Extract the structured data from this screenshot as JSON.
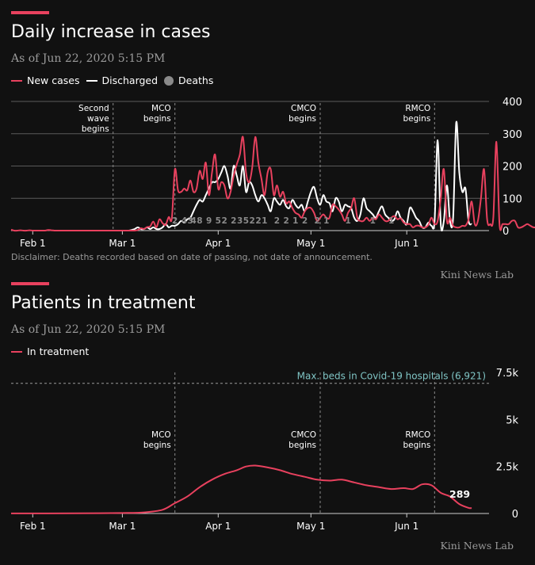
{
  "colors": {
    "new_cases": "#e8415e",
    "discharged": "#ffffff",
    "deaths": "#8a8a8a",
    "max_beds": "#7fc4c4"
  },
  "chart1": {
    "title": "Daily increase in cases",
    "subtitle": "As of Jun 22, 2020 5:15 PM",
    "legend": [
      "New cases",
      "Discharged",
      "Deaths"
    ],
    "disclaimer": "Disclaimer: Deaths recorded based on date of passing, not date of announcement.",
    "credit": "Kini News Lab"
  },
  "chart2": {
    "title": "Patients in treatment",
    "subtitle": "As of Jun 22, 2020 5:15 PM",
    "legend": [
      "In treatment"
    ],
    "credit": "Kini News Lab"
  },
  "chart_data": [
    {
      "type": "line",
      "title": "Daily increase in cases",
      "subtitle": "As of Jun 22, 2020 5:15 PM",
      "x_start": "2020-01-25",
      "x_ticks": [
        "Feb 1",
        "Mar 1",
        "Apr 1",
        "May 1",
        "Jun 1"
      ],
      "y_ticks": [
        "0",
        "100",
        "200",
        "300",
        "400"
      ],
      "ylim": [
        0,
        400
      ],
      "grid": true,
      "legend_position": "top-left",
      "annotations": [
        {
          "lines": [
            "Second",
            "wave",
            "begins"
          ],
          "x": "2020-02-27"
        },
        {
          "lines": [
            "MCO",
            "begins"
          ],
          "x": "2020-03-18"
        },
        {
          "lines": [
            "CMCO",
            "begins"
          ],
          "x": "2020-05-04"
        },
        {
          "lines": [
            "RMCO",
            "begins"
          ],
          "x": "2020-06-10"
        }
      ],
      "series": [
        {
          "name": "New cases",
          "start": "2020-01-25",
          "values": [
            3,
            0,
            0,
            1,
            0,
            0,
            1,
            0,
            0,
            0,
            0,
            0,
            2,
            1,
            0,
            0,
            0,
            0,
            0,
            0,
            0,
            0,
            0,
            0,
            0,
            0,
            0,
            0,
            0,
            0,
            0,
            0,
            0,
            0,
            0,
            0,
            0,
            0,
            0,
            0,
            0,
            2,
            7,
            5,
            11,
            13,
            28,
            10,
            35,
            23,
            18,
            42,
            38,
            190,
            125,
            120,
            130,
            125,
            155,
            120,
            130,
            185,
            160,
            210,
            110,
            180,
            235,
            130,
            150,
            140,
            100,
            120,
            170,
            205,
            235,
            290,
            180,
            150,
            195,
            290,
            210,
            160,
            110,
            180,
            190,
            110,
            140,
            105,
            120,
            85,
            90,
            70,
            55,
            50,
            40,
            60,
            70,
            70,
            55,
            30,
            40,
            50,
            40,
            40,
            80,
            75,
            65,
            50,
            30,
            55,
            70,
            100,
            40,
            30,
            30,
            40,
            30,
            40,
            35,
            50,
            40,
            30,
            30,
            40,
            45,
            35,
            38,
            25,
            20,
            20,
            10,
            15,
            15,
            10,
            10,
            18,
            40,
            20,
            30,
            100,
            190,
            30,
            40,
            15,
            10,
            10,
            15,
            15,
            35,
            90,
            20,
            30,
            100,
            190,
            35,
            20,
            40,
            275,
            20,
            20,
            20,
            20,
            30,
            30,
            10,
            10,
            15,
            20,
            15,
            10,
            10,
            10,
            15,
            25,
            20,
            10,
            15
          ],
          "note": "Values approximated from chart"
        },
        {
          "name": "Discharged",
          "start": "2020-03-01",
          "values": [
            0,
            0,
            0,
            2,
            5,
            10,
            5,
            5,
            10,
            5,
            10,
            5,
            5,
            10,
            20,
            10,
            15,
            15,
            20,
            30,
            25,
            35,
            40,
            60,
            80,
            95,
            90,
            110,
            130,
            150,
            150,
            160,
            180,
            200,
            170,
            130,
            200,
            170,
            140,
            200,
            120,
            150,
            140,
            110,
            90,
            110,
            100,
            80,
            60,
            100,
            90,
            80,
            95,
            75,
            70,
            95,
            80,
            70,
            80,
            60,
            90,
            120,
            135,
            100,
            80,
            110,
            90,
            85,
            60,
            100,
            90,
            60,
            80,
            75,
            70,
            40,
            30,
            50,
            100,
            70,
            60,
            50,
            40,
            60,
            75,
            50,
            40,
            30,
            35,
            60,
            40,
            30,
            20,
            70,
            60,
            40,
            30,
            10,
            10,
            25,
            15,
            30,
            280,
            20,
            30,
            140,
            30,
            40,
            335,
            180,
            120,
            130,
            30,
            20
          ]
        },
        {
          "name": "Deaths",
          "labels": [
            {
              "x": "2020-03-18",
              "label": "2"
            },
            {
              "x": "2020-03-21",
              "label": "4"
            },
            {
              "x": "2020-03-23",
              "label": "3"
            },
            {
              "x": "2020-03-24",
              "label": "4"
            },
            {
              "x": "2020-03-26",
              "label": "8"
            },
            {
              "x": "2020-03-29",
              "label": "9"
            },
            {
              "x": "2020-04-01",
              "label": "5"
            },
            {
              "x": "2020-04-03",
              "label": "2"
            },
            {
              "x": "2020-04-06",
              "label": "2"
            },
            {
              "x": "2020-04-08",
              "label": "3"
            },
            {
              "x": "2020-04-10",
              "label": "5"
            },
            {
              "x": "2020-04-12",
              "label": "2"
            },
            {
              "x": "2020-04-14",
              "label": "2"
            },
            {
              "x": "2020-04-16",
              "label": "1"
            },
            {
              "x": "2020-04-20",
              "label": "2"
            },
            {
              "x": "2020-04-23",
              "label": "2"
            },
            {
              "x": "2020-04-26",
              "label": "1"
            },
            {
              "x": "2020-04-29",
              "label": "2"
            },
            {
              "x": "2020-05-03",
              "label": "2"
            },
            {
              "x": "2020-05-06",
              "label": "1"
            },
            {
              "x": "2020-05-13",
              "label": "1"
            },
            {
              "x": "2020-05-21",
              "label": "1"
            },
            {
              "x": "2020-05-27",
              "label": "1"
            }
          ]
        }
      ]
    },
    {
      "type": "line",
      "title": "Patients in treatment",
      "subtitle": "As of Jun 22, 2020 5:15 PM",
      "x_start": "2020-01-25",
      "x_ticks": [
        "Feb 1",
        "Mar 1",
        "Apr 1",
        "May 1",
        "Jun 1"
      ],
      "y_ticks": [
        "0",
        "2.5k",
        "5k",
        "7.5k"
      ],
      "ylim": [
        0,
        7500
      ],
      "grid": false,
      "legend_position": "top-left",
      "reference_line": {
        "label": "Max. beds in Covid-19 hospitals (6,921)",
        "value": 6921
      },
      "annotations": [
        {
          "lines": [
            "MCO",
            "begins"
          ],
          "x": "2020-03-18"
        },
        {
          "lines": [
            "CMCO",
            "begins"
          ],
          "x": "2020-05-04"
        },
        {
          "lines": [
            "RMCO",
            "begins"
          ],
          "x": "2020-06-10"
        }
      ],
      "end_label": "289",
      "series": [
        {
          "name": "In treatment",
          "points": [
            [
              "2020-01-25",
              5
            ],
            [
              "2020-02-15",
              10
            ],
            [
              "2020-03-01",
              25
            ],
            [
              "2020-03-08",
              60
            ],
            [
              "2020-03-14",
              200
            ],
            [
              "2020-03-18",
              550
            ],
            [
              "2020-03-22",
              900
            ],
            [
              "2020-03-26",
              1400
            ],
            [
              "2020-03-30",
              1800
            ],
            [
              "2020-04-03",
              2100
            ],
            [
              "2020-04-07",
              2300
            ],
            [
              "2020-04-10",
              2500
            ],
            [
              "2020-04-13",
              2550
            ],
            [
              "2020-04-17",
              2450
            ],
            [
              "2020-04-21",
              2300
            ],
            [
              "2020-04-25",
              2100
            ],
            [
              "2020-04-29",
              1950
            ],
            [
              "2020-05-03",
              1800
            ],
            [
              "2020-05-07",
              1750
            ],
            [
              "2020-05-11",
              1800
            ],
            [
              "2020-05-15",
              1650
            ],
            [
              "2020-05-19",
              1500
            ],
            [
              "2020-05-23",
              1400
            ],
            [
              "2020-05-27",
              1300
            ],
            [
              "2020-05-31",
              1350
            ],
            [
              "2020-06-03",
              1300
            ],
            [
              "2020-06-06",
              1550
            ],
            [
              "2020-06-09",
              1500
            ],
            [
              "2020-06-12",
              1100
            ],
            [
              "2020-06-15",
              900
            ],
            [
              "2020-06-18",
              500
            ],
            [
              "2020-06-21",
              300
            ],
            [
              "2020-06-22",
              289
            ]
          ]
        }
      ]
    }
  ]
}
